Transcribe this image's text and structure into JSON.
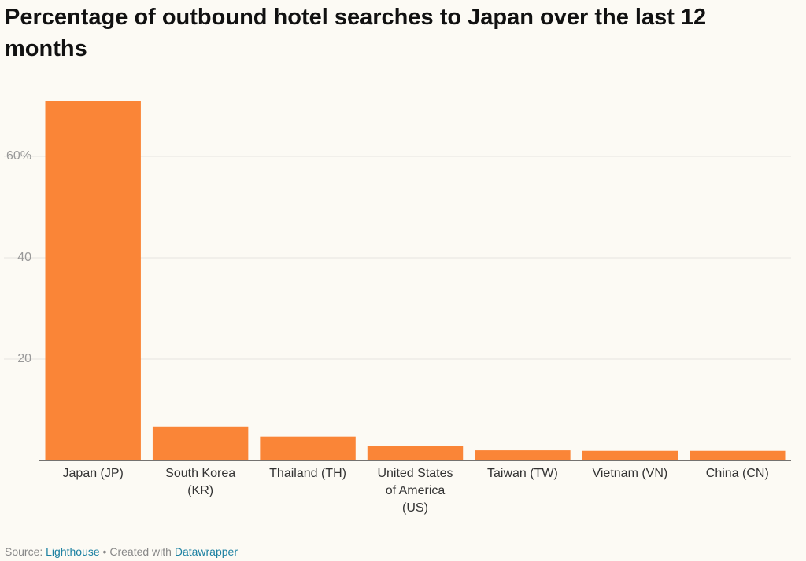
{
  "chart_data": {
    "type": "bar",
    "title": "Percentage of outbound hotel searches to Japan over the last 12 months",
    "categories": [
      "Japan (JP)",
      "South Korea (KR)",
      "Thailand (TH)",
      "United States of America (US)",
      "Taiwan (TW)",
      "Vietnam (VN)",
      "China (CN)"
    ],
    "values": [
      71,
      6.7,
      4.7,
      2.8,
      2.0,
      1.9,
      1.9
    ],
    "color": "#fa8537",
    "ylim": [
      0,
      71
    ],
    "yticks": [
      20,
      40,
      {
        "value": 60,
        "label": "60%"
      }
    ],
    "grid": true,
    "footer": {
      "source_label": "Source:",
      "source": "Lighthouse",
      "separator": "•",
      "credit": "Created with",
      "tool": "Datawrapper"
    }
  }
}
